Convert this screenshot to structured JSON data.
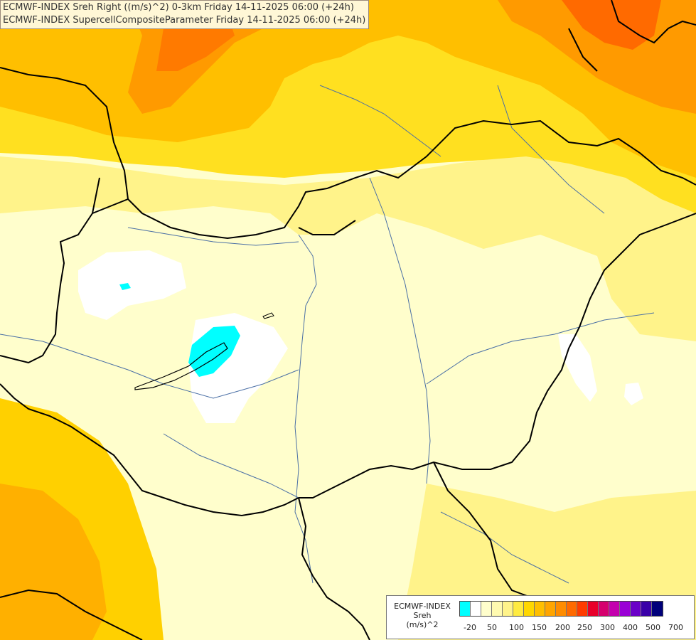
{
  "title": {
    "line1": "ECMWF-INDEX Sreh Right ((m/s)^2) 0-3km Friday 14-11-2025 06:00 (+24h)",
    "line2": "ECMWF-INDEX SupercellCompositeParameter Friday 14-11-2025 06:00 (+24h)"
  },
  "legend": {
    "title_line1": "ECMWF-INDEX",
    "title_line2": "Sreh",
    "title_line3": "(m/s)^2",
    "colors": [
      "#00ffff",
      "#ffffff",
      "#fffecc",
      "#fffab0",
      "#fff38a",
      "#ffeb40",
      "#ffd700",
      "#ffbf00",
      "#ffa500",
      "#ff8c00",
      "#ff6a00",
      "#ff3c00",
      "#e8002a",
      "#d6006e",
      "#c400ae",
      "#9a00d6",
      "#6a00c8",
      "#3a00a8",
      "#00007a"
    ],
    "ticks": [
      "-20",
      "50",
      "100",
      "150",
      "200",
      "250",
      "300",
      "400",
      "500",
      "700"
    ]
  },
  "map": {
    "field_colors": {
      "min": "#00ffff",
      "low": "#ffffff",
      "pale": "#fffecc",
      "light": "#fff38a",
      "mid": "#ffd700",
      "orange": "#ffbf00",
      "deep": "#ff8c00",
      "max": "#ff5a00"
    },
    "border_color": "#000000",
    "river_color": "#4a6fa5"
  }
}
